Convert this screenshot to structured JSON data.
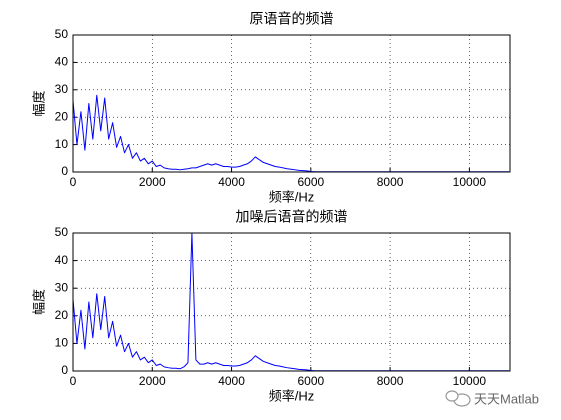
{
  "chart_data": [
    {
      "type": "line",
      "title": "原语音的频谱",
      "x_label": "频率/Hz",
      "y_label": "幅度",
      "color": "#0000ff",
      "grid": true,
      "xlim": [
        0,
        11025
      ],
      "xticks": [
        0,
        2000,
        4000,
        6000,
        8000,
        10000
      ],
      "ylim": [
        0,
        50
      ],
      "yticks": [
        0,
        10,
        20,
        30,
        40,
        50
      ],
      "x": [
        0,
        100,
        200,
        300,
        400,
        500,
        600,
        700,
        800,
        900,
        1000,
        1100,
        1200,
        1300,
        1400,
        1500,
        1600,
        1700,
        1800,
        1900,
        2000,
        2100,
        2200,
        2300,
        2400,
        2500,
        2600,
        2700,
        2800,
        2900,
        3000,
        3100,
        3200,
        3300,
        3400,
        3500,
        3600,
        3700,
        3800,
        3900,
        4000,
        4100,
        4200,
        4300,
        4400,
        4500,
        4600,
        4700,
        4800,
        4900,
        5000,
        5100,
        5200,
        5300,
        5400,
        5500,
        5600,
        5700,
        5800,
        5900,
        6000,
        6100,
        6200,
        6300,
        6400,
        6500,
        6600,
        6700,
        6800,
        6900,
        7000,
        7100,
        7200,
        7300,
        7400,
        7500,
        7600,
        7700,
        7800,
        7900,
        8000,
        8100,
        8200,
        8300,
        8400,
        8500,
        8600,
        8700,
        8800,
        8900,
        9000,
        9100,
        9200,
        9300,
        9400,
        9500,
        9600,
        9700,
        9800,
        9900,
        10000,
        10100,
        10200,
        10300,
        10400,
        10500,
        10600,
        10700,
        10800,
        10900,
        11000
      ],
      "values": [
        26,
        10,
        22,
        8,
        25,
        12,
        28,
        15,
        27,
        12,
        18,
        9,
        13,
        7,
        10,
        5,
        7,
        4,
        5,
        3,
        4,
        2,
        2.5,
        1.5,
        1.2,
        1,
        1,
        0.8,
        1,
        1.2,
        1.5,
        1.5,
        2,
        2.5,
        3,
        2.5,
        3,
        2.5,
        2,
        2,
        1.8,
        1.8,
        2,
        2.5,
        3,
        4,
        5.5,
        4.5,
        3.5,
        3,
        2.5,
        2,
        1.8,
        1.5,
        1.2,
        1,
        0.8,
        0.6,
        0.5,
        0.4,
        0.2,
        0.1,
        0.1,
        0.1,
        0.1,
        0.1,
        0.1,
        0.1,
        0.1,
        0.1,
        0.1,
        0.1,
        0.1,
        0.1,
        0.1,
        0.1,
        0.1,
        0.1,
        0.1,
        0.1,
        0.1,
        0.1,
        0.1,
        0.1,
        0.1,
        0.1,
        0.1,
        0.1,
        0.1,
        0.1,
        0.1,
        0.1,
        0.1,
        0.1,
        0.1,
        0.1,
        0.1,
        0.1,
        0.1,
        0.1,
        0.1,
        0.1,
        0.1,
        0.1,
        0.1,
        0.1,
        0.1,
        0.1,
        0.1,
        0.1,
        0.1
      ]
    },
    {
      "type": "line",
      "title": "加噪后语音的频谱",
      "x_label": "频率/Hz",
      "y_label": "幅度",
      "color": "#0000ff",
      "grid": true,
      "xlim": [
        0,
        11025
      ],
      "xticks": [
        0,
        2000,
        4000,
        6000,
        8000,
        10000
      ],
      "ylim": [
        0,
        50
      ],
      "yticks": [
        0,
        10,
        20,
        30,
        40,
        50
      ],
      "x": [
        0,
        100,
        200,
        300,
        400,
        500,
        600,
        700,
        800,
        900,
        1000,
        1100,
        1200,
        1300,
        1400,
        1500,
        1600,
        1700,
        1800,
        1900,
        2000,
        2100,
        2200,
        2300,
        2400,
        2500,
        2600,
        2700,
        2800,
        2900,
        3000,
        3100,
        3200,
        3300,
        3400,
        3500,
        3600,
        3700,
        3800,
        3900,
        4000,
        4100,
        4200,
        4300,
        4400,
        4500,
        4600,
        4700,
        4800,
        4900,
        5000,
        5100,
        5200,
        5300,
        5400,
        5500,
        5600,
        5700,
        5800,
        5900,
        6000,
        6100,
        6200,
        6300,
        6400,
        6500,
        6600,
        6700,
        6800,
        6900,
        7000,
        7100,
        7200,
        7300,
        7400,
        7500,
        7600,
        7700,
        7800,
        7900,
        8000,
        8100,
        8200,
        8300,
        8400,
        8500,
        8600,
        8700,
        8800,
        8900,
        9000,
        9100,
        9200,
        9300,
        9400,
        9500,
        9600,
        9700,
        9800,
        9900,
        10000,
        10100,
        10200,
        10300,
        10400,
        10500,
        10600,
        10700,
        10800,
        10900,
        11000
      ],
      "values": [
        26,
        10,
        22,
        8,
        25,
        12,
        28,
        15,
        27,
        12,
        18,
        9,
        13,
        7,
        10,
        5,
        7,
        4,
        5,
        3,
        4,
        2,
        2.5,
        1.5,
        1.2,
        1,
        1,
        0.8,
        1.5,
        3,
        50,
        4,
        2.5,
        2.5,
        3,
        2.5,
        3,
        2.5,
        2,
        2,
        1.8,
        1.8,
        2,
        2.5,
        3,
        4,
        5.5,
        4.5,
        3.5,
        3,
        2.5,
        2,
        1.8,
        1.5,
        1.2,
        1,
        0.8,
        0.6,
        0.5,
        0.4,
        0.2,
        0.1,
        0.1,
        0.1,
        0.1,
        0.1,
        0.1,
        0.1,
        0.1,
        0.1,
        0.1,
        0.1,
        0.1,
        0.1,
        0.1,
        0.1,
        0.1,
        0.1,
        0.1,
        0.1,
        0.1,
        0.1,
        0.1,
        0.1,
        0.1,
        0.1,
        0.1,
        0.1,
        0.1,
        0.1,
        0.1,
        0.1,
        0.1,
        0.1,
        0.1,
        0.1,
        0.1,
        0.1,
        0.1,
        0.1,
        0.1,
        0.1,
        0.1,
        0.1,
        0.1,
        0.1,
        0.1,
        0.1,
        0.1,
        0.1,
        0.1
      ]
    }
  ],
  "watermark": "天天Matlab"
}
